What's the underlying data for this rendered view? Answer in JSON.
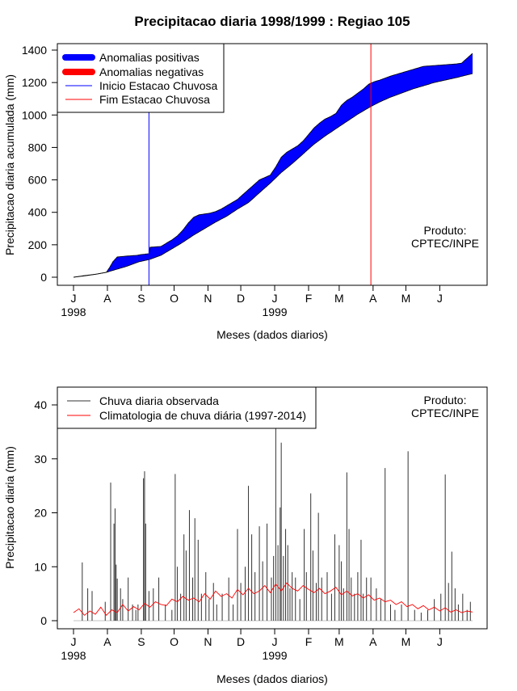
{
  "chart_data": [
    {
      "type": "area",
      "title": "Precipitacao diaria 1998/1999 : Regiao 105",
      "xlabel": "Meses (dados diarios)",
      "ylabel": "Precipitacao diaria acumulada (mm)",
      "ylim": [
        0,
        1400
      ],
      "yticks": [
        0,
        200,
        400,
        600,
        800,
        1000,
        1200,
        1400
      ],
      "x_range_days": [
        0,
        365
      ],
      "month_ticks": [
        {
          "label": "J",
          "day": 0
        },
        {
          "label": "A",
          "day": 31
        },
        {
          "label": "S",
          "day": 62
        },
        {
          "label": "O",
          "day": 92
        },
        {
          "label": "N",
          "day": 123
        },
        {
          "label": "D",
          "day": 153
        },
        {
          "label": "J",
          "day": 184
        },
        {
          "label": "F",
          "day": 215
        },
        {
          "label": "M",
          "day": 243
        },
        {
          "label": "A",
          "day": 274
        },
        {
          "label": "M",
          "day": 304
        },
        {
          "label": "J",
          "day": 335
        }
      ],
      "year_labels": [
        {
          "label": "1998",
          "day": 0
        },
        {
          "label": "1999",
          "day": 184
        }
      ],
      "observed_cumulative": {
        "days": [
          0,
          10,
          22,
          30,
          33,
          36,
          40,
          48,
          58,
          62,
          69,
          70,
          80,
          90,
          95,
          100,
          105,
          110,
          115,
          120,
          125,
          130,
          135,
          140,
          145,
          150,
          155,
          160,
          165,
          170,
          175,
          180,
          185,
          190,
          195,
          200,
          205,
          210,
          215,
          220,
          225,
          230,
          235,
          240,
          245,
          250,
          255,
          260,
          265,
          270,
          275,
          280,
          290,
          300,
          310,
          320,
          330,
          340,
          350,
          355,
          365
        ],
        "values": [
          0,
          10,
          20,
          30,
          60,
          95,
          125,
          130,
          135,
          140,
          145,
          185,
          190,
          230,
          255,
          290,
          335,
          370,
          385,
          390,
          395,
          405,
          420,
          440,
          460,
          480,
          510,
          540,
          570,
          600,
          615,
          630,
          680,
          740,
          770,
          790,
          810,
          840,
          880,
          920,
          950,
          975,
          990,
          1010,
          1060,
          1090,
          1110,
          1135,
          1160,
          1190,
          1205,
          1215,
          1240,
          1260,
          1280,
          1300,
          1305,
          1310,
          1315,
          1320,
          1380
        ]
      },
      "climatology_cumulative": {
        "days": [
          0,
          10,
          20,
          30,
          40,
          50,
          60,
          70,
          80,
          90,
          100,
          110,
          120,
          130,
          140,
          150,
          160,
          170,
          180,
          190,
          200,
          210,
          220,
          230,
          240,
          250,
          260,
          270,
          280,
          290,
          300,
          310,
          320,
          330,
          340,
          350,
          365
        ],
        "values": [
          0,
          8,
          18,
          30,
          50,
          70,
          95,
          110,
          135,
          175,
          215,
          260,
          300,
          340,
          375,
          420,
          460,
          520,
          580,
          645,
          700,
          760,
          820,
          870,
          915,
          960,
          1005,
          1045,
          1080,
          1110,
          1135,
          1160,
          1180,
          1200,
          1215,
          1230,
          1255
        ]
      },
      "inicio_estacao_chuvosa_day": 69,
      "fim_estacao_chuvosa_day": 272,
      "legend": [
        {
          "label": "Anomalias positivas",
          "color": "#0000ff"
        },
        {
          "label": "Anomalias negativas",
          "color": "#ff0000"
        },
        {
          "label": "Inicio Estacao Chuvosa",
          "color": "#0000ff"
        },
        {
          "label": "Fim Estacao Chuvosa",
          "color": "#ff0000"
        }
      ],
      "annotation": [
        "Produto:",
        "CPTEC/INPE"
      ]
    },
    {
      "type": "line",
      "xlabel": "Meses (dados diarios)",
      "ylabel": "Precipitacao diaria (mm)",
      "ylim": [
        0,
        43
      ],
      "yticks": [
        0,
        10,
        20,
        30,
        40
      ],
      "x_range_days": [
        0,
        365
      ],
      "observed_spikes": [
        [
          8,
          10.8
        ],
        [
          13,
          6
        ],
        [
          17,
          5.5
        ],
        [
          29,
          3.5
        ],
        [
          34,
          25.6
        ],
        [
          37,
          18
        ],
        [
          38,
          20.8
        ],
        [
          39,
          10.4
        ],
        [
          40,
          7.8
        ],
        [
          43,
          6
        ],
        [
          45,
          4
        ],
        [
          50,
          8
        ],
        [
          54,
          3
        ],
        [
          57,
          2
        ],
        [
          59,
          3
        ],
        [
          64,
          26.4
        ],
        [
          65,
          27.7
        ],
        [
          66,
          18
        ],
        [
          69,
          5.5
        ],
        [
          73,
          6
        ],
        [
          78,
          8
        ],
        [
          84,
          3
        ],
        [
          90,
          2
        ],
        [
          93,
          27.2
        ],
        [
          95,
          10
        ],
        [
          98,
          5
        ],
        [
          101,
          16
        ],
        [
          103,
          13
        ],
        [
          106,
          20.5
        ],
        [
          109,
          8
        ],
        [
          111,
          19
        ],
        [
          114,
          15
        ],
        [
          117,
          5
        ],
        [
          121,
          9
        ],
        [
          124,
          4
        ],
        [
          128,
          7
        ],
        [
          131,
          3
        ],
        [
          136,
          5
        ],
        [
          142,
          8
        ],
        [
          146,
          3
        ],
        [
          150,
          17
        ],
        [
          153,
          7
        ],
        [
          157,
          10
        ],
        [
          160,
          25
        ],
        [
          163,
          16
        ],
        [
          166,
          9
        ],
        [
          170,
          17.5
        ],
        [
          173,
          11
        ],
        [
          177,
          18
        ],
        [
          181,
          8
        ],
        [
          183,
          12
        ],
        [
          185,
          36.5
        ],
        [
          187,
          14
        ],
        [
          189,
          21
        ],
        [
          190,
          33
        ],
        [
          192,
          12
        ],
        [
          194,
          17
        ],
        [
          196,
          14
        ],
        [
          198,
          6
        ],
        [
          200,
          9
        ],
        [
          203,
          8
        ],
        [
          207,
          4
        ],
        [
          211,
          17
        ],
        [
          213,
          9
        ],
        [
          217,
          23.6
        ],
        [
          219,
          13
        ],
        [
          222,
          7
        ],
        [
          224,
          20
        ],
        [
          227,
          8
        ],
        [
          232,
          9
        ],
        [
          236,
          5
        ],
        [
          239,
          16
        ],
        [
          243,
          14
        ],
        [
          245,
          11
        ],
        [
          247,
          6
        ],
        [
          250,
          27.5
        ],
        [
          252,
          17
        ],
        [
          254,
          8
        ],
        [
          257,
          5
        ],
        [
          260,
          9
        ],
        [
          263,
          15
        ],
        [
          265,
          5
        ],
        [
          268,
          8
        ],
        [
          272,
          8
        ],
        [
          277,
          6
        ],
        [
          281,
          4
        ],
        [
          285,
          28.3
        ],
        [
          290,
          3
        ],
        [
          294,
          2
        ],
        [
          300,
          3
        ],
        [
          306,
          31.4
        ],
        [
          312,
          2
        ],
        [
          318,
          1.5
        ],
        [
          324,
          2
        ],
        [
          330,
          4
        ],
        [
          336,
          5
        ],
        [
          340,
          27.1
        ],
        [
          343,
          7
        ],
        [
          346,
          12.8
        ],
        [
          349,
          6
        ],
        [
          352,
          3
        ],
        [
          356,
          5
        ],
        [
          360,
          2
        ],
        [
          363,
          3.5
        ]
      ],
      "climatology": {
        "days": [
          0,
          5,
          10,
          15,
          20,
          25,
          30,
          35,
          40,
          45,
          50,
          55,
          60,
          65,
          70,
          75,
          80,
          85,
          90,
          95,
          100,
          105,
          110,
          115,
          120,
          125,
          130,
          135,
          140,
          145,
          150,
          155,
          160,
          165,
          170,
          175,
          180,
          185,
          190,
          195,
          200,
          205,
          210,
          215,
          220,
          225,
          230,
          235,
          240,
          245,
          250,
          255,
          260,
          265,
          270,
          275,
          280,
          285,
          290,
          295,
          300,
          305,
          310,
          315,
          320,
          325,
          330,
          335,
          340,
          345,
          350,
          355,
          360,
          365
        ],
        "values": [
          1.5,
          2.2,
          1.0,
          1.8,
          1.2,
          2.5,
          1.0,
          2.0,
          1.5,
          3.0,
          1.8,
          2.6,
          2.0,
          3.2,
          2.5,
          3.5,
          3.0,
          2.8,
          4.0,
          3.5,
          4.5,
          3.8,
          4.2,
          3.5,
          5.0,
          4.0,
          5.5,
          4.5,
          5.0,
          4.2,
          5.8,
          4.8,
          6.0,
          5.0,
          5.5,
          6.5,
          5.2,
          6.8,
          5.5,
          7.0,
          6.0,
          5.5,
          6.5,
          5.8,
          5.2,
          6.0,
          5.0,
          5.5,
          6.2,
          4.8,
          5.5,
          4.6,
          5.0,
          4.2,
          4.8,
          3.8,
          4.2,
          3.5,
          3.8,
          3.0,
          3.5,
          2.6,
          3.0,
          2.2,
          2.8,
          2.0,
          2.5,
          1.8,
          2.4,
          1.6,
          2.0,
          1.5,
          1.8,
          1.6
        ]
      },
      "month_ticks": [
        {
          "label": "J",
          "day": 0
        },
        {
          "label": "A",
          "day": 31
        },
        {
          "label": "S",
          "day": 62
        },
        {
          "label": "O",
          "day": 92
        },
        {
          "label": "N",
          "day": 123
        },
        {
          "label": "D",
          "day": 153
        },
        {
          "label": "J",
          "day": 184
        },
        {
          "label": "F",
          "day": 215
        },
        {
          "label": "M",
          "day": 243
        },
        {
          "label": "A",
          "day": 274
        },
        {
          "label": "M",
          "day": 304
        },
        {
          "label": "J",
          "day": 335
        }
      ],
      "year_labels": [
        {
          "label": "1998",
          "day": 0
        },
        {
          "label": "1999",
          "day": 184
        }
      ],
      "legend": [
        {
          "label": "Chuva diaria observada",
          "color": "#333333"
        },
        {
          "label": "Climatologia de chuva diária (1997-2014)",
          "color": "#ff0000"
        }
      ],
      "annotation": [
        "Produto:",
        "CPTEC/INPE"
      ]
    }
  ]
}
